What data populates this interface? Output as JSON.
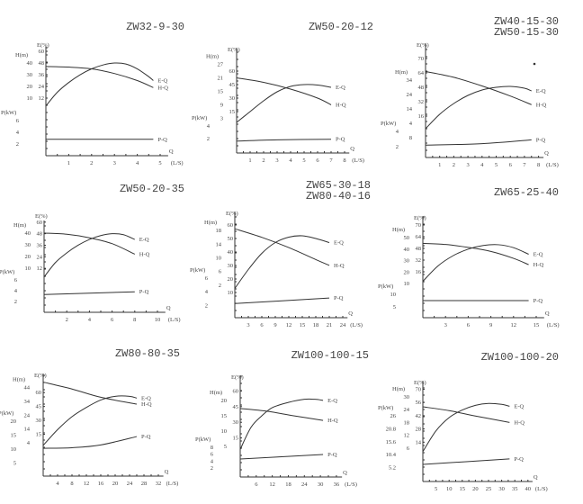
{
  "chart_data": [
    {
      "type": "line",
      "title_lines": [
        "ZW32-9-30"
      ],
      "x": {
        "label": "Q",
        "unit": "(L/S)",
        "ticks": [
          1,
          2,
          3,
          4,
          5
        ]
      },
      "e_axis": {
        "label": "E(%)",
        "ticks": [
          60,
          48,
          36,
          24,
          12
        ]
      },
      "h_axis": {
        "label": "H(m)",
        "ticks": [
          40,
          30,
          20,
          10
        ]
      },
      "p_axis": {
        "label": "P(kW)",
        "ticks": [
          6,
          4,
          2
        ]
      },
      "series": [
        {
          "name": "E-Q",
          "axis": "e",
          "points": [
            [
              0,
              4
            ],
            [
              0.5,
              18
            ],
            [
              1,
              28
            ],
            [
              1.5,
              36
            ],
            [
              2,
              42
            ],
            [
              2.5,
              46
            ],
            [
              3,
              48
            ],
            [
              3.5,
              47
            ],
            [
              4,
              42
            ],
            [
              4.5,
              34
            ],
            [
              4.7,
              30
            ]
          ]
        },
        {
          "name": "H-Q",
          "axis": "h",
          "points": [
            [
              0,
              37
            ],
            [
              1,
              36.5
            ],
            [
              2,
              35
            ],
            [
              3,
              31
            ],
            [
              4,
              25
            ],
            [
              4.7,
              19
            ]
          ]
        },
        {
          "name": "P-Q",
          "axis": "p",
          "points": [
            [
              0,
              2.8
            ],
            [
              4.7,
              2.8
            ]
          ]
        }
      ]
    },
    {
      "type": "line",
      "title_lines": [
        "ZW50-20-12"
      ],
      "x": {
        "label": "Q",
        "unit": "(L/S)",
        "ticks": [
          1,
          2,
          3,
          4,
          5,
          6,
          7,
          8
        ]
      },
      "e_axis": {
        "label": "E(%)",
        "ticks": [
          60,
          45,
          30,
          15
        ]
      },
      "h_axis": {
        "label": "H(m)",
        "ticks": [
          27,
          21,
          15,
          9,
          3
        ]
      },
      "p_axis": {
        "label": "P(kW)",
        "ticks": [
          4,
          2
        ]
      },
      "series": [
        {
          "name": "E-Q",
          "axis": "e",
          "points": [
            [
              0,
              3
            ],
            [
              1,
              15
            ],
            [
              2,
              27
            ],
            [
              3,
              37
            ],
            [
              4,
              43
            ],
            [
              5,
              45
            ],
            [
              6,
              44.5
            ],
            [
              7,
              42
            ]
          ]
        },
        {
          "name": "H-Q",
          "axis": "h",
          "points": [
            [
              0,
              21
            ],
            [
              2,
              19
            ],
            [
              4,
              16
            ],
            [
              6,
              12
            ],
            [
              7,
              9
            ]
          ]
        },
        {
          "name": "P-Q",
          "axis": "p",
          "points": [
            [
              0,
              1.6
            ],
            [
              3,
              1.8
            ],
            [
              7,
              1.9
            ]
          ]
        }
      ]
    },
    {
      "type": "line",
      "title_lines": [
        "ZW40-15-30",
        "ZW50-15-30"
      ],
      "x": {
        "label": "Q",
        "unit": "(L/S)",
        "ticks": [
          1,
          2,
          3,
          4,
          5,
          6,
          7,
          8
        ]
      },
      "e_axis": {
        "label": "E(%)",
        "ticks": [
          70,
          64,
          48,
          32,
          16
        ]
      },
      "h_axis": {
        "label": "H(m)",
        "ticks": [
          34,
          24,
          14,
          4
        ]
      },
      "p_axis": {
        "label": "P(kW)",
        "ticks": [
          4,
          2
        ]
      },
      "extra_label": "8",
      "series": [
        {
          "name": "E-Q",
          "axis": "e",
          "points": [
            [
              0,
              2
            ],
            [
              1,
              18
            ],
            [
              2,
              30
            ],
            [
              3,
              39
            ],
            [
              4,
              45
            ],
            [
              5,
              48
            ],
            [
              6,
              49
            ],
            [
              7,
              47
            ],
            [
              7.5,
              44
            ]
          ]
        },
        {
          "name": "H-Q",
          "axis": "h",
          "points": [
            [
              0,
              40
            ],
            [
              2,
              36
            ],
            [
              4,
              30
            ],
            [
              6,
              23
            ],
            [
              7.5,
              17
            ]
          ]
        },
        {
          "name": "P-Q",
          "axis": "p",
          "points": [
            [
              0,
              2.2
            ],
            [
              4,
              2.4
            ],
            [
              7.5,
              2.9
            ]
          ]
        }
      ]
    },
    {
      "type": "line",
      "title_lines": [
        "ZW50-20-35"
      ],
      "x": {
        "label": "Q",
        "unit": "(L/S)",
        "ticks": [
          2,
          4,
          6,
          8,
          10
        ]
      },
      "e_axis": {
        "label": "E(%)",
        "ticks": [
          60,
          48,
          36,
          24,
          12
        ]
      },
      "h_axis": {
        "label": "H(m)",
        "ticks": [
          40,
          30,
          20,
          10
        ]
      },
      "p_axis": {
        "label": "P(kW)",
        "ticks": [
          6,
          4,
          2
        ]
      },
      "series": [
        {
          "name": "E-Q",
          "axis": "e",
          "points": [
            [
              0,
              3
            ],
            [
              1,
              18
            ],
            [
              2,
              28
            ],
            [
              3,
              36
            ],
            [
              4,
              42
            ],
            [
              5,
              46
            ],
            [
              6,
              48
            ],
            [
              7,
              47
            ],
            [
              8,
              42
            ]
          ]
        },
        {
          "name": "H-Q",
          "axis": "h",
          "points": [
            [
              0,
              40
            ],
            [
              2,
              39
            ],
            [
              4,
              36
            ],
            [
              6,
              31
            ],
            [
              8,
              22
            ]
          ]
        },
        {
          "name": "P-Q",
          "axis": "p",
          "points": [
            [
              0,
              3.3
            ],
            [
              8,
              3.8
            ]
          ]
        }
      ]
    },
    {
      "type": "line",
      "title_lines": [
        "ZW65-30-18",
        "ZW80-40-16"
      ],
      "x": {
        "label": "Q",
        "unit": "(L/S)",
        "ticks": [
          3,
          6,
          9,
          12,
          15,
          18,
          21,
          24
        ]
      },
      "e_axis": {
        "label": "E(%)",
        "ticks": [
          60,
          50,
          40,
          30,
          20,
          10
        ]
      },
      "h_axis": {
        "label": "H(m)",
        "ticks": [
          18,
          14,
          10,
          6,
          2
        ]
      },
      "p_axis": {
        "label": "P(kW)",
        "ticks": [
          6,
          4,
          2
        ]
      },
      "series": [
        {
          "name": "E-Q",
          "axis": "e",
          "points": [
            [
              0,
              13
            ],
            [
              3,
              27
            ],
            [
              6,
              39
            ],
            [
              9,
              47
            ],
            [
              12,
              51
            ],
            [
              15,
              52
            ],
            [
              18,
              50
            ],
            [
              21,
              47
            ]
          ]
        },
        {
          "name": "H-Q",
          "axis": "h",
          "points": [
            [
              0,
              18.5
            ],
            [
              6,
              16
            ],
            [
              12,
              13
            ],
            [
              18,
              9.5
            ],
            [
              21,
              7.8
            ]
          ]
        },
        {
          "name": "P-Q",
          "axis": "p",
          "points": [
            [
              0,
              2.3
            ],
            [
              21,
              3.1
            ]
          ]
        }
      ]
    },
    {
      "type": "line",
      "title_lines": [
        "ZW65-25-40"
      ],
      "x": {
        "label": "Q",
        "unit": "(L/S)",
        "ticks": [
          3,
          6,
          9,
          12,
          15
        ]
      },
      "e_axis": {
        "label": "E(%)",
        "ticks": [
          70,
          64,
          48,
          32,
          16
        ]
      },
      "h_axis": {
        "label": "H(m)",
        "ticks": [
          50,
          40,
          30,
          20,
          10
        ]
      },
      "p_axis": {
        "label": "P(kW)",
        "ticks": [
          10,
          5
        ]
      },
      "series": [
        {
          "name": "E-Q",
          "axis": "e",
          "points": [
            [
              0,
              3
            ],
            [
              2,
              24
            ],
            [
              4,
              38
            ],
            [
              6,
              47
            ],
            [
              8,
              52
            ],
            [
              10,
              53
            ],
            [
              12,
              49
            ],
            [
              14,
              40
            ]
          ]
        },
        {
          "name": "H-Q",
          "axis": "h",
          "points": [
            [
              0,
              45
            ],
            [
              3,
              44
            ],
            [
              6,
              41.5
            ],
            [
              9,
              38
            ],
            [
              12,
              32
            ],
            [
              14,
              26.5
            ]
          ]
        },
        {
          "name": "P-Q",
          "axis": "p",
          "points": [
            [
              0,
              7.5
            ],
            [
              14,
              7.5
            ]
          ]
        }
      ]
    },
    {
      "type": "line",
      "title_lines": [
        "ZW80-80-35"
      ],
      "x": {
        "label": "Q",
        "unit": "(L/S)",
        "ticks": [
          4,
          8,
          12,
          16,
          20,
          24,
          28,
          32
        ]
      },
      "e_axis": {
        "label": "E(%)",
        "ticks": [
          60,
          45,
          30,
          15
        ]
      },
      "h_axis": {
        "label": "H(m)",
        "ticks": [
          44,
          34,
          24,
          14,
          4
        ]
      },
      "p_axis": {
        "label": "P(kW)",
        "ticks": [
          20,
          15,
          10,
          5
        ]
      },
      "series": [
        {
          "name": "E-Q",
          "axis": "e",
          "points": [
            [
              0,
              3
            ],
            [
              4,
              20
            ],
            [
              8,
              34
            ],
            [
              12,
              44
            ],
            [
              16,
              52
            ],
            [
              20,
              56
            ],
            [
              24,
              56
            ],
            [
              26,
              54
            ]
          ]
        },
        {
          "name": "H-Q",
          "axis": "h",
          "points": [
            [
              0,
              48
            ],
            [
              8,
              43
            ],
            [
              16,
              37
            ],
            [
              26,
              32
            ]
          ]
        },
        {
          "name": "P-Q",
          "axis": "p",
          "points": [
            [
              0,
              10.3
            ],
            [
              8,
              10.5
            ],
            [
              16,
              11.5
            ],
            [
              26,
              14.5
            ]
          ]
        }
      ]
    },
    {
      "type": "line",
      "title_lines": [
        "ZW100-100-15"
      ],
      "x": {
        "label": "Q",
        "unit": "(L/S)",
        "ticks": [
          6,
          12,
          18,
          24,
          30,
          36
        ]
      },
      "e_axis": {
        "label": "E(%)",
        "ticks": [
          60,
          45,
          30,
          15
        ]
      },
      "h_axis": {
        "label": "H(m)",
        "ticks": [
          20,
          15,
          10,
          5
        ]
      },
      "p_axis": {
        "label": "P(kW)",
        "ticks": [
          8,
          6,
          4,
          2
        ]
      },
      "series": [
        {
          "name": "E-Q",
          "axis": "e",
          "points": [
            [
              0,
              4
            ],
            [
              4,
              25
            ],
            [
              8,
              36
            ],
            [
              12,
              44
            ],
            [
              18,
              49
            ],
            [
              24,
              52
            ],
            [
              28,
              52
            ],
            [
              31,
              51
            ]
          ]
        },
        {
          "name": "H-Q",
          "axis": "h",
          "points": [
            [
              0,
              17.4
            ],
            [
              10,
              16.5
            ],
            [
              20,
              15
            ],
            [
              31,
              13.5
            ]
          ]
        },
        {
          "name": "P-Q",
          "axis": "p",
          "points": [
            [
              0,
              4.6
            ],
            [
              31,
              5.9
            ]
          ]
        }
      ]
    },
    {
      "type": "line",
      "title_lines": [
        "ZW100-100-20"
      ],
      "x": {
        "label": "Q",
        "unit": "(L/S)",
        "ticks": [
          5,
          10,
          15,
          20,
          25,
          30,
          35,
          40
        ]
      },
      "e_axis": {
        "label": "E(%)",
        "ticks": [
          70,
          56,
          42,
          28,
          14
        ]
      },
      "h_axis": {
        "label": "H(m)",
        "ticks": [
          30,
          24,
          18,
          12,
          6
        ]
      },
      "p_axis": {
        "label": "P(kW)",
        "ticks": [
          26,
          20.8,
          15.6,
          10.4,
          5.2
        ]
      },
      "series": [
        {
          "name": "E-Q",
          "axis": "e",
          "points": [
            [
              0,
              4
            ],
            [
              5,
              26
            ],
            [
              10,
              40
            ],
            [
              15,
              48
            ],
            [
              20,
              53
            ],
            [
              25,
              55
            ],
            [
              30,
              54
            ],
            [
              33,
              52
            ]
          ]
        },
        {
          "name": "H-Q",
          "axis": "h",
          "points": [
            [
              0,
              25.3
            ],
            [
              10,
              23.5
            ],
            [
              20,
              21
            ],
            [
              33,
              18
            ]
          ]
        },
        {
          "name": "P-Q",
          "axis": "p",
          "points": [
            [
              0,
              6.5
            ],
            [
              33,
              8.7
            ]
          ]
        }
      ]
    }
  ],
  "colors": {
    "ink": "#333333",
    "background": "#ffffff"
  }
}
